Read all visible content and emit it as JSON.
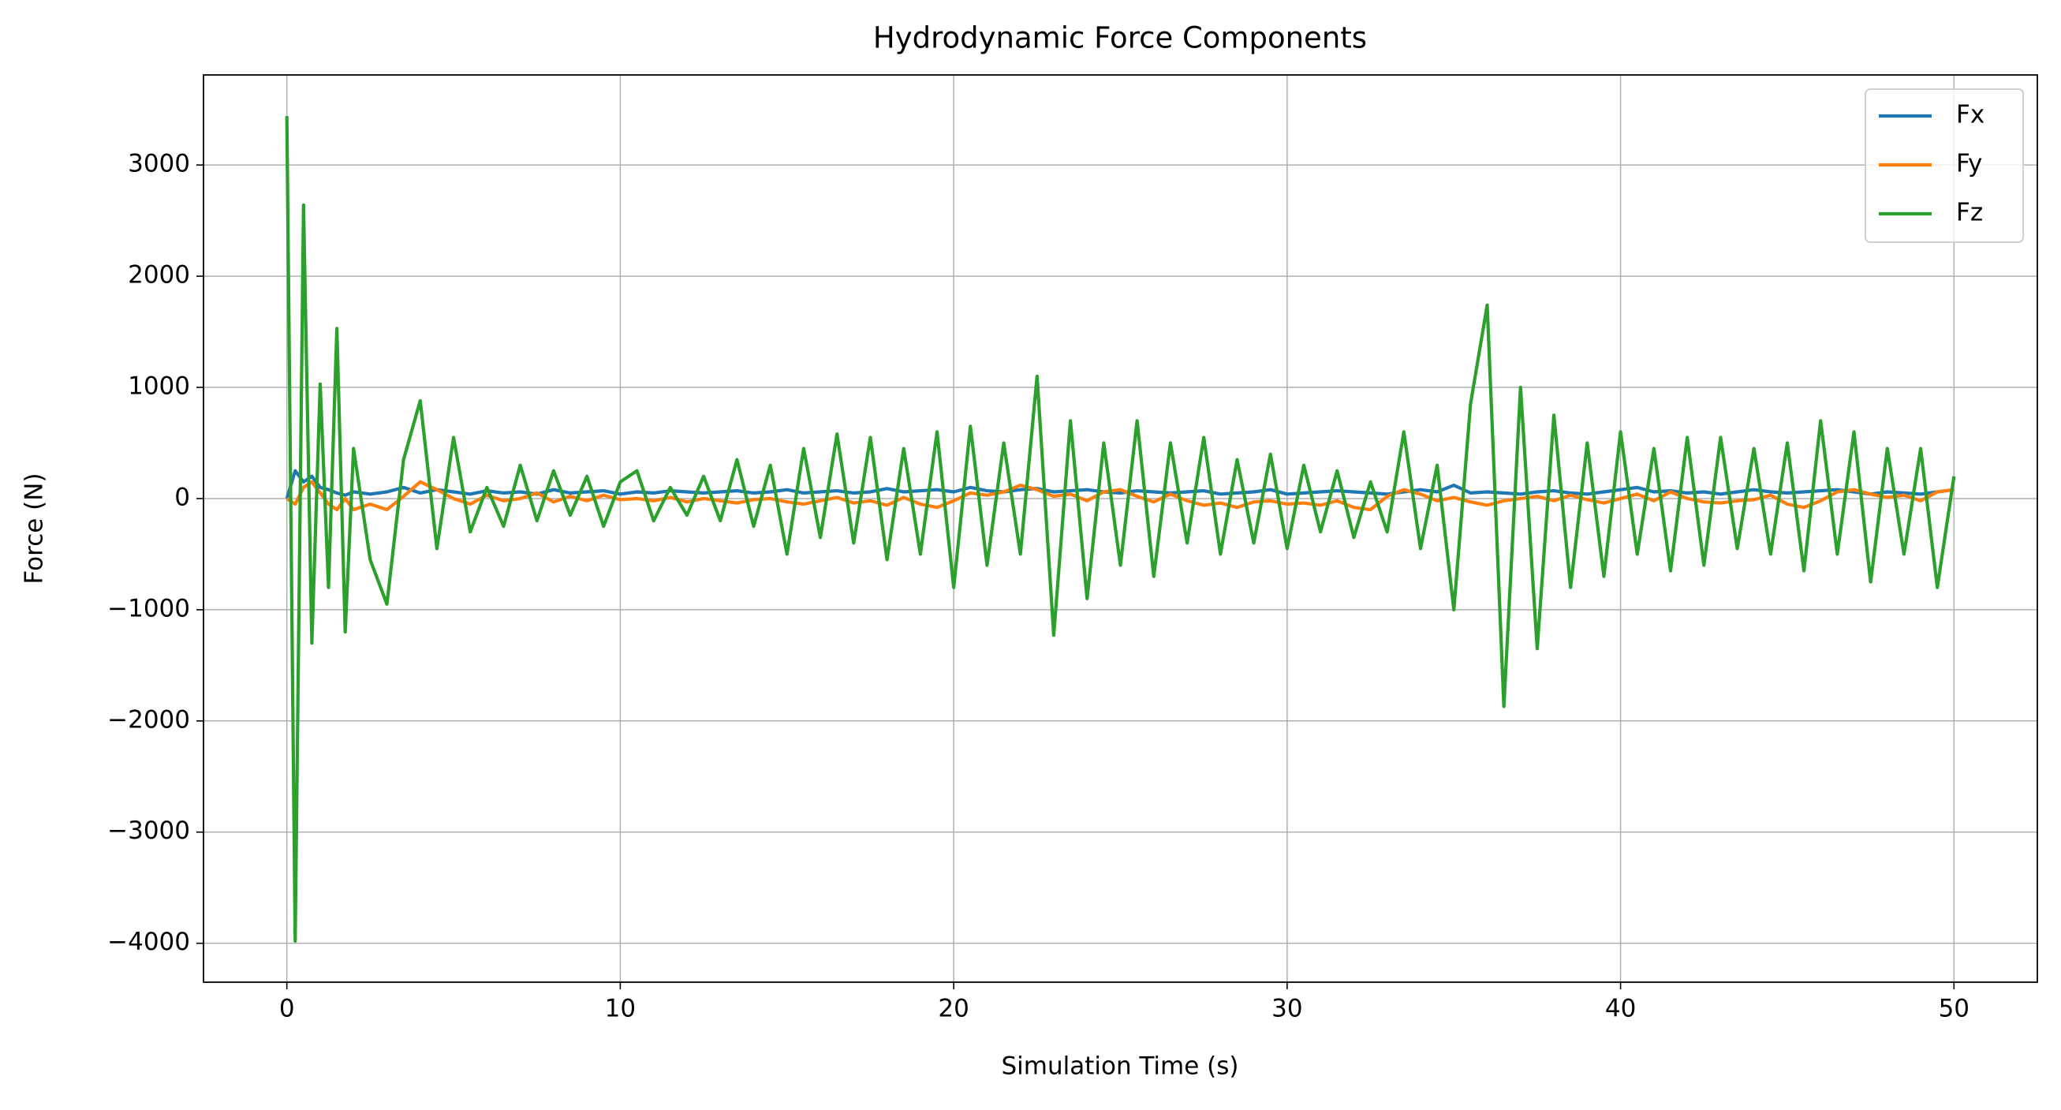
{
  "chart_data": {
    "type": "line",
    "title": "Hydrodynamic Force Components",
    "xlabel": "Simulation Time (s)",
    "ylabel": "Force (N)",
    "x": [
      0,
      0.25,
      0.5,
      0.75,
      1,
      1.25,
      1.5,
      1.75,
      2,
      2.5,
      3,
      3.5,
      4,
      4.5,
      5,
      5.5,
      6,
      6.5,
      7,
      7.5,
      8,
      8.5,
      9,
      9.5,
      10,
      10.5,
      11,
      11.5,
      12,
      12.5,
      13,
      13.5,
      14,
      14.5,
      15,
      15.5,
      16,
      16.5,
      17,
      17.5,
      18,
      18.5,
      19,
      19.5,
      20,
      20.5,
      21,
      21.5,
      22,
      22.5,
      23,
      23.5,
      24,
      24.5,
      25,
      25.5,
      26,
      26.5,
      27,
      27.5,
      28,
      28.5,
      29,
      29.5,
      30,
      30.5,
      31,
      31.5,
      32,
      32.5,
      33,
      33.5,
      34,
      34.5,
      35,
      35.5,
      36,
      36.5,
      37,
      37.5,
      38,
      38.5,
      39,
      39.5,
      40,
      40.5,
      41,
      41.5,
      42,
      42.5,
      43,
      43.5,
      44,
      44.5,
      45,
      45.5,
      46,
      46.5,
      47,
      47.5,
      48,
      48.5,
      49,
      49.5,
      50
    ],
    "series": [
      {
        "name": "Fx",
        "color": "#1f77b4",
        "values": [
          0,
          250,
          150,
          200,
          100,
          80,
          50,
          30,
          60,
          40,
          60,
          100,
          50,
          80,
          60,
          40,
          70,
          50,
          60,
          40,
          80,
          50,
          60,
          70,
          40,
          60,
          50,
          70,
          60,
          50,
          60,
          70,
          50,
          60,
          80,
          50,
          60,
          70,
          50,
          60,
          90,
          60,
          70,
          80,
          60,
          100,
          70,
          60,
          80,
          90,
          60,
          70,
          80,
          60,
          50,
          70,
          60,
          50,
          60,
          70,
          40,
          50,
          60,
          80,
          40,
          50,
          60,
          70,
          60,
          50,
          40,
          60,
          80,
          60,
          120,
          50,
          60,
          50,
          40,
          60,
          70,
          50,
          40,
          60,
          80,
          100,
          60,
          70,
          50,
          60,
          40,
          60,
          80,
          60,
          50,
          60,
          70,
          80,
          60,
          40,
          60,
          50,
          40,
          60,
          80
        ]
      },
      {
        "name": "Fy",
        "color": "#ff7f0e",
        "values": [
          0,
          -50,
          100,
          150,
          50,
          -50,
          -100,
          0,
          -100,
          -50,
          -100,
          20,
          150,
          80,
          0,
          -50,
          30,
          -20,
          0,
          50,
          -30,
          20,
          -20,
          30,
          -10,
          0,
          -20,
          10,
          -30,
          0,
          -20,
          -40,
          -10,
          0,
          -30,
          -50,
          -20,
          10,
          -40,
          -20,
          -60,
          10,
          -50,
          -80,
          -20,
          50,
          30,
          60,
          120,
          80,
          20,
          40,
          -20,
          60,
          80,
          20,
          -30,
          40,
          -20,
          -60,
          -40,
          -80,
          -30,
          -20,
          -50,
          -40,
          -60,
          -20,
          -80,
          -100,
          20,
          80,
          40,
          -20,
          10,
          -30,
          -60,
          -20,
          0,
          20,
          -20,
          30,
          -10,
          -40,
          0,
          40,
          -20,
          60,
          0,
          -30,
          -40,
          -20,
          -10,
          30,
          -50,
          -80,
          -20,
          60,
          80,
          40,
          10,
          30,
          -20,
          60,
          80
        ]
      },
      {
        "name": "Fz",
        "color": "#2ca02c",
        "values": [
          3440,
          -3980,
          2640,
          -1300,
          1030,
          -800,
          1530,
          -1200,
          450,
          -550,
          -950,
          350,
          880,
          -450,
          550,
          -300,
          100,
          -250,
          300,
          -200,
          250,
          -150,
          200,
          -250,
          150,
          250,
          -200,
          100,
          -150,
          200,
          -200,
          350,
          -250,
          300,
          -500,
          450,
          -350,
          580,
          -400,
          550,
          -550,
          450,
          -500,
          600,
          -800,
          650,
          -600,
          500,
          -500,
          1100,
          -1230,
          700,
          -900,
          500,
          -600,
          700,
          -700,
          500,
          -400,
          550,
          -500,
          350,
          -400,
          400,
          -450,
          300,
          -300,
          250,
          -350,
          150,
          -300,
          600,
          -450,
          300,
          -1000,
          850,
          1740,
          -1870,
          1000,
          -1350,
          750,
          -800,
          500,
          -700,
          600,
          -500,
          450,
          -650,
          550,
          -600,
          550,
          -450,
          450,
          -500,
          500,
          -650,
          700,
          -500,
          600,
          -750,
          450,
          -500,
          450,
          -800,
          200
        ]
      }
    ],
    "xlim": [
      -2.5,
      52.5
    ],
    "xticks": [
      0,
      10,
      20,
      30,
      40,
      50
    ],
    "ylim": [
      -4350,
      3810
    ],
    "yticks": [
      {
        "value": -4000,
        "label": "−4000"
      },
      {
        "value": -3000,
        "label": "−3000"
      },
      {
        "value": -2000,
        "label": "−2000"
      },
      {
        "value": -1000,
        "label": "−1000"
      },
      0,
      1000,
      2000,
      3000
    ],
    "grid": true,
    "legend": "upper right"
  }
}
